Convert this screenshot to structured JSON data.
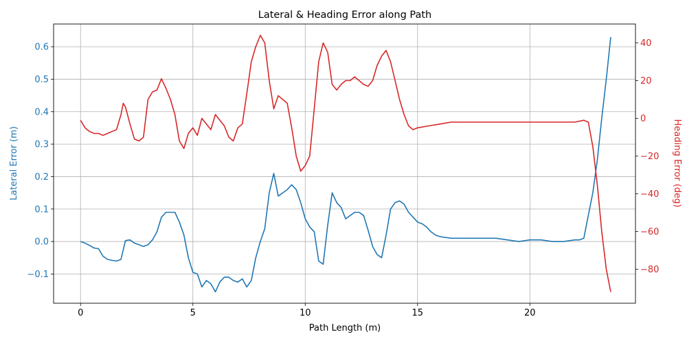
{
  "chart_data": {
    "type": "line",
    "title": "Lateral & Heading Error along Path",
    "xlabel": "Path Length (m)",
    "ylabel_left": "Lateral Error (m)",
    "ylabel_right": "Heading Error (deg)",
    "xlim": [
      -1.2,
      24.7
    ],
    "ylim_left": [
      -0.19,
      0.67
    ],
    "ylim_right": [
      -98,
      50
    ],
    "x_ticks": [
      0,
      5,
      10,
      15,
      20
    ],
    "y_ticks_left": [
      -0.1,
      0.0,
      0.1,
      0.2,
      0.3,
      0.4,
      0.5,
      0.6
    ],
    "y_ticks_left_labels": [
      "−0.1",
      "0.0",
      "0.1",
      "0.2",
      "0.3",
      "0.4",
      "0.5",
      "0.6"
    ],
    "y_ticks_right": [
      -80,
      -60,
      -40,
      -20,
      0,
      20,
      40
    ],
    "y_ticks_right_labels": [
      "−80",
      "−60",
      "−40",
      "−20",
      "0",
      "20",
      "40"
    ],
    "grid": true,
    "colors": {
      "left": "#1f77b4",
      "right": "#d62728"
    },
    "series": [
      {
        "axis": "left",
        "x": [
          0,
          0.2,
          0.4,
          0.6,
          0.8,
          1.0,
          1.2,
          1.4,
          1.6,
          1.8,
          2.0,
          2.2,
          2.4,
          2.6,
          2.8,
          3.0,
          3.2,
          3.4,
          3.6,
          3.8,
          4.0,
          4.2,
          4.4,
          4.6,
          4.8,
          5.0,
          5.2,
          5.4,
          5.6,
          5.8,
          6.0,
          6.2,
          6.4,
          6.6,
          6.8,
          7.0,
          7.2,
          7.4,
          7.6,
          7.8,
          8.0,
          8.2,
          8.4,
          8.6,
          8.8,
          9.0,
          9.2,
          9.4,
          9.6,
          9.8,
          10.0,
          10.2,
          10.4,
          10.6,
          10.8,
          11.0,
          11.2,
          11.4,
          11.6,
          11.8,
          12.0,
          12.2,
          12.4,
          12.6,
          12.8,
          13.0,
          13.2,
          13.4,
          13.6,
          13.8,
          14.0,
          14.2,
          14.4,
          14.6,
          14.8,
          15.0,
          15.2,
          15.4,
          15.6,
          15.8,
          16.0,
          16.5,
          17.0,
          17.5,
          18.0,
          18.5,
          19.0,
          19.5,
          20.0,
          20.5,
          21.0,
          21.5,
          22.0,
          22.2,
          22.4,
          22.6,
          22.8,
          23.0,
          23.2,
          23.4,
          23.6
        ],
        "values": [
          0.0,
          -0.005,
          -0.012,
          -0.02,
          -0.022,
          -0.045,
          -0.055,
          -0.058,
          -0.06,
          -0.055,
          0.003,
          0.005,
          -0.005,
          -0.01,
          -0.015,
          -0.01,
          0.005,
          0.03,
          0.075,
          0.09,
          0.09,
          0.09,
          0.06,
          0.02,
          -0.05,
          -0.095,
          -0.1,
          -0.14,
          -0.12,
          -0.13,
          -0.155,
          -0.125,
          -0.11,
          -0.11,
          -0.12,
          -0.125,
          -0.115,
          -0.14,
          -0.12,
          -0.05,
          0.0,
          0.04,
          0.15,
          0.21,
          0.14,
          0.15,
          0.16,
          0.175,
          0.16,
          0.12,
          0.07,
          0.045,
          0.03,
          -0.06,
          -0.07,
          0.05,
          0.15,
          0.12,
          0.105,
          0.07,
          0.08,
          0.09,
          0.09,
          0.08,
          0.035,
          -0.015,
          -0.04,
          -0.05,
          0.02,
          0.1,
          0.12,
          0.125,
          0.115,
          0.09,
          0.075,
          0.06,
          0.055,
          0.045,
          0.03,
          0.02,
          0.015,
          0.01,
          0.01,
          0.01,
          0.01,
          0.01,
          0.005,
          0.0,
          0.005,
          0.005,
          0.0,
          0.0,
          0.005,
          0.005,
          0.01,
          0.08,
          0.15,
          0.25,
          0.38,
          0.5,
          0.63
        ]
      },
      {
        "axis": "right",
        "x": [
          0,
          0.2,
          0.4,
          0.6,
          0.8,
          1.0,
          1.2,
          1.4,
          1.6,
          1.8,
          1.9,
          2.0,
          2.2,
          2.4,
          2.6,
          2.8,
          3.0,
          3.2,
          3.4,
          3.6,
          3.8,
          4.0,
          4.2,
          4.4,
          4.6,
          4.8,
          5.0,
          5.2,
          5.4,
          5.6,
          5.8,
          6.0,
          6.2,
          6.4,
          6.6,
          6.8,
          7.0,
          7.2,
          7.4,
          7.6,
          7.8,
          8.0,
          8.2,
          8.4,
          8.6,
          8.8,
          9.0,
          9.2,
          9.4,
          9.6,
          9.8,
          10.0,
          10.2,
          10.4,
          10.6,
          10.8,
          11.0,
          11.2,
          11.4,
          11.6,
          11.8,
          12.0,
          12.2,
          12.4,
          12.6,
          12.8,
          13.0,
          13.2,
          13.4,
          13.6,
          13.8,
          14.0,
          14.2,
          14.4,
          14.6,
          14.8,
          15.0,
          15.5,
          16.0,
          16.5,
          17.0,
          18.0,
          19.0,
          20.0,
          21.0,
          22.0,
          22.4,
          22.6,
          22.8,
          23.0,
          23.2,
          23.4,
          23.6
        ],
        "values": [
          -1,
          -5,
          -7,
          -8,
          -8,
          -9,
          -8,
          -7,
          -6,
          2,
          8,
          6,
          -3,
          -11,
          -12,
          -10,
          10,
          14,
          15,
          21,
          16,
          10,
          2,
          -12,
          -16,
          -8,
          -5,
          -9,
          0,
          -3,
          -6,
          2,
          -1,
          -4,
          -10,
          -12,
          -5,
          -3,
          13,
          30,
          38,
          44,
          40,
          20,
          5,
          12,
          10,
          8,
          -5,
          -20,
          -28,
          -25,
          -20,
          5,
          30,
          40,
          35,
          18,
          15,
          18,
          20,
          20,
          22,
          20,
          18,
          17,
          20,
          28,
          33,
          36,
          30,
          20,
          10,
          2,
          -4,
          -6,
          -5,
          -4,
          -3,
          -2,
          -2,
          -2,
          -2,
          -2,
          -2,
          -2,
          -1,
          -2,
          -15,
          -35,
          -60,
          -80,
          -92
        ]
      }
    ]
  }
}
